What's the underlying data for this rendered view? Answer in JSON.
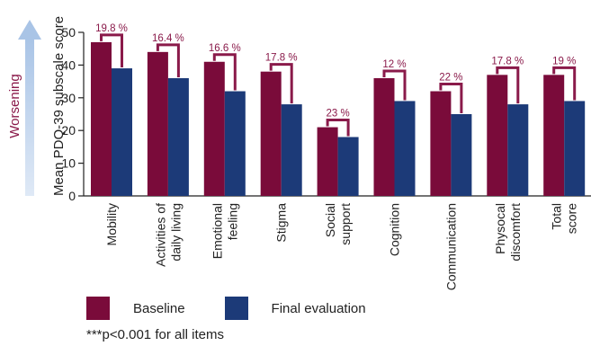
{
  "chart_data": {
    "type": "bar",
    "ylabel": "Mean PDQ-39 subscale score",
    "side_label": "Worsening",
    "ylim": [
      0,
      50
    ],
    "yticks": [
      0,
      10,
      20,
      30,
      40,
      50
    ],
    "categories": [
      [
        "Mobility"
      ],
      [
        "Activities of",
        "daily living"
      ],
      [
        "Emotional",
        "feeling"
      ],
      [
        "Stigma"
      ],
      [
        "Social",
        "support"
      ],
      [
        "Cognition"
      ],
      [
        "Communication"
      ],
      [
        "Physocal",
        "discomfort"
      ],
      [
        "Total",
        "score"
      ]
    ],
    "series": [
      {
        "name": "Baseline",
        "color": "#7a0b3a",
        "values": [
          47,
          44,
          41,
          38,
          21,
          36,
          32,
          37,
          37
        ]
      },
      {
        "name": "Final evaluation",
        "color": "#1c3a78",
        "values": [
          39,
          36,
          32,
          28,
          18,
          29,
          25,
          28,
          29
        ]
      }
    ],
    "annotations": [
      "19.8 %",
      "16.4 %",
      "16.6 %",
      "17.8 %",
      "23 %",
      "12 %",
      "22 %",
      "17.8 %",
      "19 %"
    ],
    "annotation_color": "#8a1a4a",
    "grid": false,
    "legend_position": "bottom-left"
  },
  "footnote": "***p<0.001 for all items"
}
